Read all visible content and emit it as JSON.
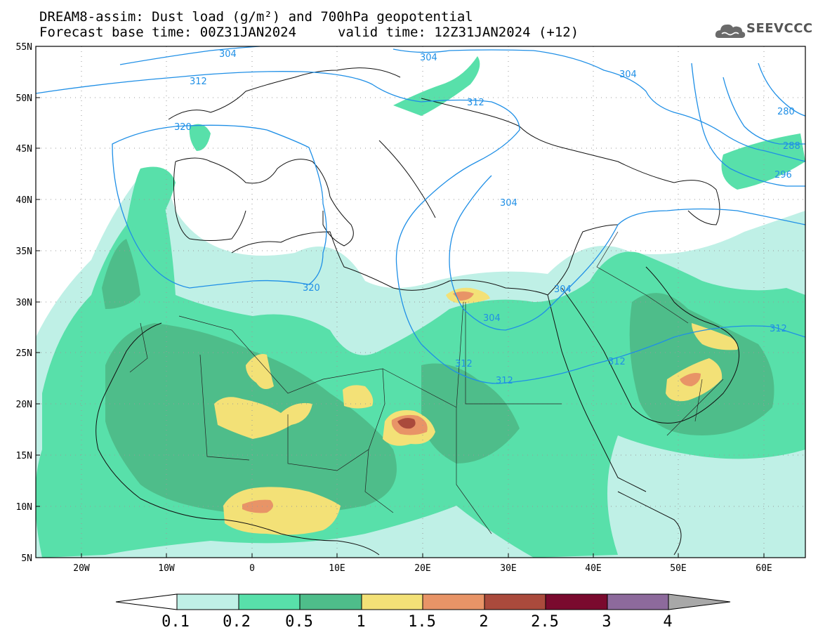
{
  "header": {
    "title_line1": "DREAM8-assim: Dust load (g/m²) and 700hPa geopotential",
    "forecast_base": "Forecast base time: 00Z31JAN2024",
    "valid_time": "valid time: 12Z31JAN2024 (+12)",
    "logo_text": "SEEVCCC"
  },
  "map": {
    "lon_range": [
      -25,
      65
    ],
    "lat_range": [
      5,
      55
    ],
    "lat_ticks": [
      "5N",
      "10N",
      "15N",
      "20N",
      "25N",
      "30N",
      "35N",
      "40N",
      "45N",
      "50N",
      "55N"
    ],
    "lon_ticks": [
      "20W",
      "10W",
      "0",
      "10E",
      "20E",
      "30E",
      "40E",
      "50E",
      "60E"
    ],
    "contour_color": "#1f8fe6",
    "isoline_labels": [
      "304",
      "312",
      "320",
      "304",
      "312",
      "304",
      "280",
      "288",
      "296",
      "304",
      "320",
      "304",
      "304",
      "312",
      "312",
      "312",
      "312"
    ]
  },
  "colorbar": {
    "labels": [
      "0.1",
      "0.2",
      "0.5",
      "1",
      "1.5",
      "2",
      "2.5",
      "3",
      "4"
    ],
    "colors": [
      "#bff0e6",
      "#58e0aa",
      "#4ebd8a",
      "#f3e177",
      "#e89467",
      "#aa4a3c",
      "#7a0a2e",
      "#8d6a9c",
      "#a8a8a8"
    ]
  }
}
